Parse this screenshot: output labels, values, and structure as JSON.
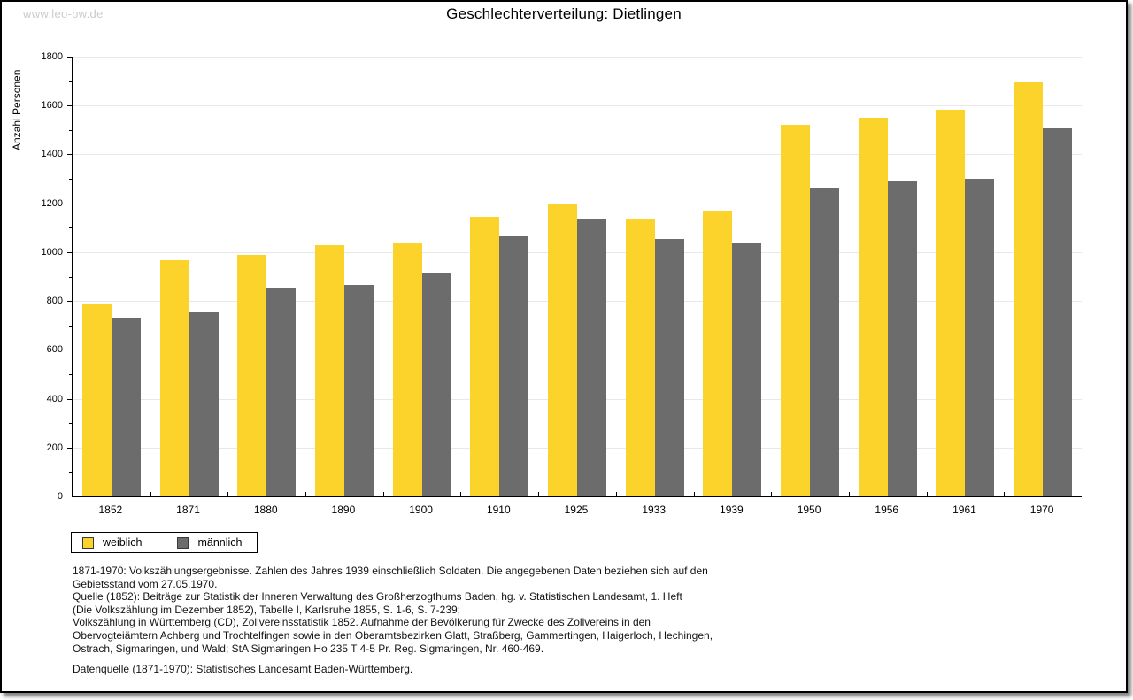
{
  "watermark": "www.leo-bw.de",
  "title": "Geschlechterverteilung: Dietlingen",
  "chart_data": {
    "type": "bar",
    "title": "Geschlechterverteilung: Dietlingen",
    "xlabel": "",
    "ylabel": "Anzahl Personen",
    "ylim": [
      0,
      1800
    ],
    "ytick_major_step": 200,
    "ytick_minor_step": 100,
    "grid": true,
    "legend_position": "bottom-left",
    "categories": [
      "1852",
      "1871",
      "1880",
      "1890",
      "1900",
      "1910",
      "1925",
      "1933",
      "1939",
      "1950",
      "1956",
      "1961",
      "1970"
    ],
    "series": [
      {
        "name": "weiblich",
        "color": "#fcd32b",
        "values": [
          790,
          968,
          988,
          1030,
          1035,
          1143,
          1199,
          1133,
          1170,
          1520,
          1550,
          1581,
          1695
        ]
      },
      {
        "name": "männlich",
        "color": "#6c6c6c",
        "values": [
          732,
          755,
          852,
          866,
          914,
          1065,
          1132,
          1055,
          1036,
          1263,
          1291,
          1301,
          1508
        ]
      }
    ]
  },
  "legend": {
    "items": [
      {
        "label": "weiblich",
        "color": "#fcd32b"
      },
      {
        "label": "männlich",
        "color": "#6c6c6c"
      }
    ]
  },
  "footnotes": {
    "lines": [
      "1871-1970: Volkszählungsergebnisse. Zahlen des Jahres 1939 einschließlich Soldaten. Die angegebenen Daten beziehen sich auf den",
      "Gebietsstand vom 27.05.1970.",
      "Quelle (1852): Beiträge zur Statistik der Inneren Verwaltung des Großherzogthums Baden, hg. v. Statistischen Landesamt, 1. Heft",
      "(Die Volkszählung im Dezember 1852), Tabelle I, Karlsruhe 1855, S. 1-6, S. 7-239;",
      "Volkszählung in Württemberg (CD), Zollvereinsstatistik 1852. Aufnahme der Bevölkerung für Zwecke des Zollvereins in den",
      "Obervogteiämtern Achberg und Trochtelfingen sowie in den Oberamtsbezirken Glatt, Straßberg, Gammertingen, Haigerloch, Hechingen,",
      "Ostrach, Sigmaringen, und Wald; StA Sigmaringen Ho 235 T 4-5 Pr. Reg. Sigmaringen, Nr. 460-469."
    ],
    "datasource": "Datenquelle (1871-1970): Statistisches Landesamt Baden-Württemberg."
  },
  "colors": {
    "female_bar": "#fcd32b",
    "male_bar": "#6c6c6c",
    "gridline": "#e8e8e8",
    "axis": "#000000",
    "watermark": "#cccccc",
    "page_border": "#000000"
  }
}
